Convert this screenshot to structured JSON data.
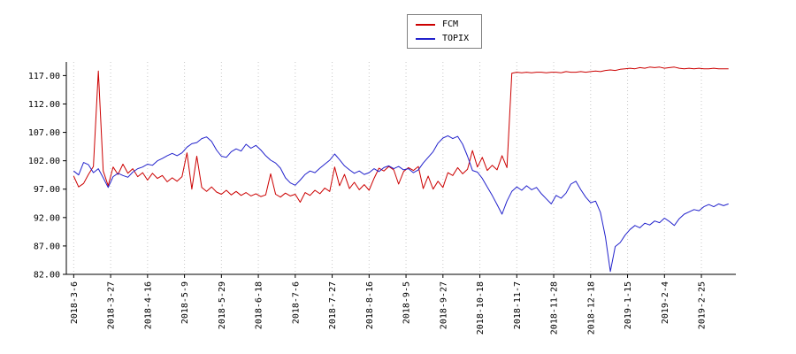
{
  "chart_data": {
    "type": "line",
    "title": "",
    "xlabel": "",
    "ylabel": "",
    "grid": "vertical-dotted",
    "legend_position": "top-center",
    "ylim": [
      82,
      119.4
    ],
    "xlim_days": [
      -3,
      269
    ],
    "colors": {
      "axis": "#000000",
      "grid": "#c8c8c8",
      "tick_text": "#000000"
    },
    "y_ticks": [
      {
        "label": "82.00",
        "value": 82
      },
      {
        "label": "87.00",
        "value": 87
      },
      {
        "label": "92.00",
        "value": 92
      },
      {
        "label": "97.00",
        "value": 97
      },
      {
        "label": "102.00",
        "value": 102
      },
      {
        "label": "107.00",
        "value": 107
      },
      {
        "label": "112.00",
        "value": 112
      },
      {
        "label": "117.00",
        "value": 117
      }
    ],
    "x_ticks": [
      {
        "label": "2018-3-6",
        "day": 0
      },
      {
        "label": "2018-3-27",
        "day": 15
      },
      {
        "label": "2018-4-16",
        "day": 30
      },
      {
        "label": "2018-5-9",
        "day": 45
      },
      {
        "label": "2018-5-29",
        "day": 60
      },
      {
        "label": "2018-6-18",
        "day": 75
      },
      {
        "label": "2018-7-6",
        "day": 90
      },
      {
        "label": "2018-7-27",
        "day": 105
      },
      {
        "label": "2018-8-16",
        "day": 120
      },
      {
        "label": "2018-9-5",
        "day": 135
      },
      {
        "label": "2018-9-27",
        "day": 150
      },
      {
        "label": "2018-10-18",
        "day": 165
      },
      {
        "label": "2018-11-7",
        "day": 180
      },
      {
        "label": "2018-11-28",
        "day": 195
      },
      {
        "label": "2018-12-18",
        "day": 210
      },
      {
        "label": "2019-1-15",
        "day": 225
      },
      {
        "label": "2019-2-4",
        "day": 240
      },
      {
        "label": "2019-2-25",
        "day": 255
      }
    ],
    "series": [
      {
        "name": "FCM",
        "color": "#cc0000",
        "day_step": 2,
        "values": [
          99.3,
          97.4,
          98.0,
          99.6,
          101.0,
          117.8,
          100.2,
          97.6,
          100.9,
          99.6,
          101.4,
          99.8,
          100.6,
          99.2,
          99.9,
          98.6,
          99.8,
          98.9,
          99.4,
          98.3,
          99.0,
          98.4,
          99.2,
          103.4,
          97.0,
          102.8,
          97.3,
          96.6,
          97.4,
          96.5,
          96.1,
          96.8,
          96.0,
          96.6,
          95.9,
          96.4,
          95.8,
          96.2,
          95.7,
          96.0,
          99.7,
          96.1,
          95.6,
          96.3,
          95.8,
          96.1,
          94.7,
          96.4,
          95.9,
          96.8,
          96.2,
          97.2,
          96.6,
          100.9,
          97.6,
          99.6,
          97.1,
          98.2,
          96.9,
          97.8,
          96.8,
          98.9,
          100.7,
          100.2,
          101.0,
          100.4,
          97.9,
          100.1,
          100.8,
          100.3,
          101.0,
          97.1,
          99.3,
          97.0,
          98.4,
          97.3,
          99.9,
          99.4,
          100.8,
          99.7,
          100.5,
          103.8,
          100.9,
          102.6,
          100.3,
          101.2,
          100.4,
          102.9,
          100.8,
          117.4,
          117.6,
          117.5,
          117.6,
          117.5,
          117.6,
          117.6,
          117.5,
          117.6,
          117.6,
          117.5,
          117.7,
          117.6,
          117.6,
          117.7,
          117.6,
          117.7,
          117.8,
          117.7,
          117.9,
          118.0,
          117.9,
          118.1,
          118.2,
          118.3,
          118.2,
          118.4,
          118.3,
          118.5,
          118.4,
          118.5,
          118.3,
          118.4,
          118.5,
          118.3,
          118.2,
          118.3,
          118.2,
          118.3,
          118.2,
          118.2,
          118.3,
          118.2,
          118.2,
          118.2
        ]
      },
      {
        "name": "TOPIX",
        "color": "#2222cc",
        "day_step": 2,
        "values": [
          100.2,
          99.5,
          101.7,
          101.3,
          99.9,
          100.6,
          99.0,
          97.3,
          99.2,
          99.8,
          99.4,
          99.1,
          100.0,
          100.6,
          100.9,
          101.4,
          101.2,
          102.0,
          102.4,
          102.9,
          103.3,
          102.9,
          103.4,
          104.4,
          105.0,
          105.2,
          105.9,
          106.2,
          105.4,
          103.9,
          102.8,
          102.6,
          103.6,
          104.1,
          103.7,
          104.9,
          104.2,
          104.7,
          103.9,
          102.9,
          102.1,
          101.6,
          100.7,
          99.0,
          98.1,
          97.7,
          98.6,
          99.6,
          100.2,
          99.9,
          100.7,
          101.4,
          102.1,
          103.2,
          102.2,
          101.1,
          100.4,
          99.8,
          100.2,
          99.6,
          99.9,
          100.6,
          100.1,
          100.8,
          101.1,
          100.6,
          101.0,
          100.4,
          100.6,
          99.9,
          100.4,
          101.6,
          102.6,
          103.6,
          105.1,
          106.0,
          106.4,
          105.9,
          106.3,
          104.9,
          102.8,
          100.3,
          100.0,
          98.9,
          97.4,
          95.9,
          94.3,
          92.6,
          94.9,
          96.6,
          97.4,
          96.8,
          97.6,
          96.9,
          97.3,
          96.2,
          95.3,
          94.4,
          95.9,
          95.4,
          96.3,
          97.9,
          98.4,
          96.9,
          95.6,
          94.6,
          94.9,
          92.9,
          88.6,
          82.5,
          86.9,
          87.6,
          88.9,
          89.9,
          90.6,
          90.2,
          91.0,
          90.7,
          91.4,
          91.1,
          91.9,
          91.3,
          90.6,
          91.8,
          92.6,
          93.0,
          93.4,
          93.2,
          93.9,
          94.3,
          93.9,
          94.4,
          94.1,
          94.4
        ]
      }
    ]
  }
}
